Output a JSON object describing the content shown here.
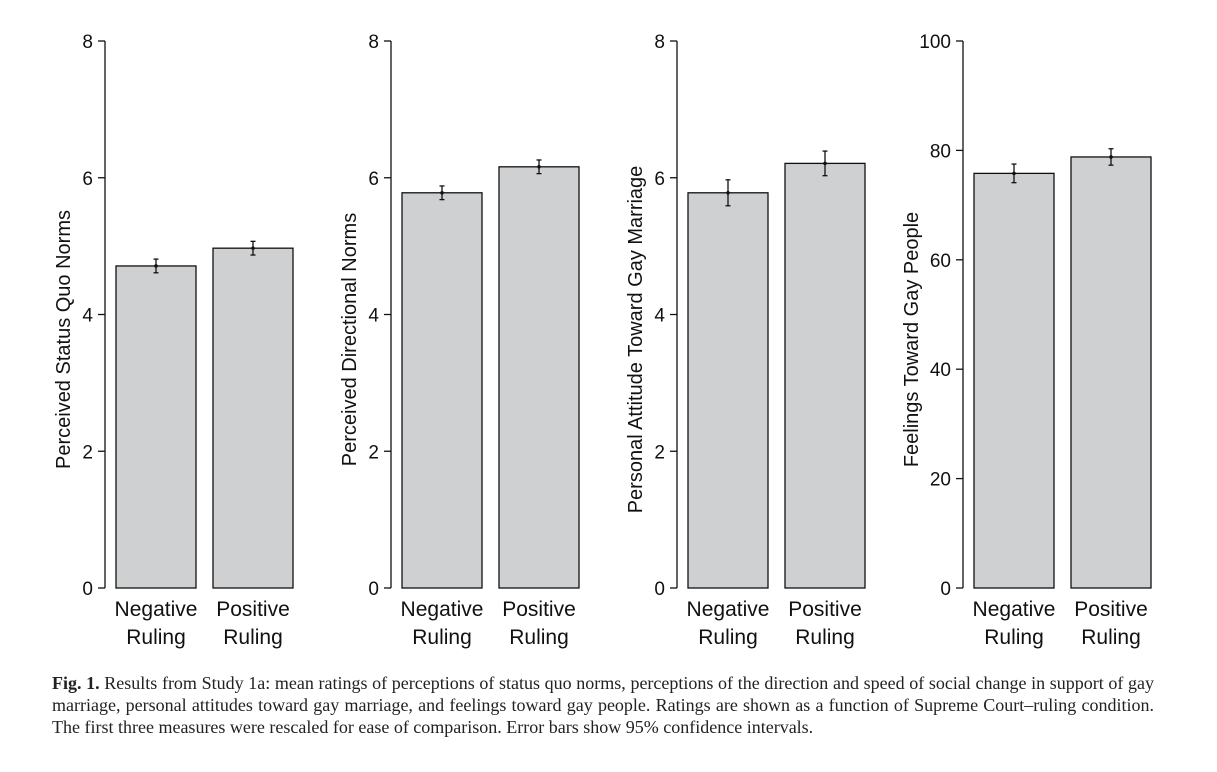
{
  "chart_data": [
    {
      "type": "bar",
      "categories": [
        "Negative Ruling",
        "Positive Ruling"
      ],
      "values": [
        4.71,
        4.97
      ],
      "error_bars": [
        [
          4.61,
          4.81
        ],
        [
          4.87,
          5.07
        ]
      ],
      "ylabel": "Perceived Status Quo Norms",
      "ylim": [
        0,
        8
      ],
      "yticks": [
        0,
        2,
        4,
        6,
        8
      ]
    },
    {
      "type": "bar",
      "categories": [
        "Negative Ruling",
        "Positive Ruling"
      ],
      "values": [
        5.78,
        6.16
      ],
      "error_bars": [
        [
          5.68,
          5.88
        ],
        [
          6.06,
          6.26
        ]
      ],
      "ylabel": "Perceived Directional Norms",
      "ylim": [
        0,
        8
      ],
      "yticks": [
        0,
        2,
        4,
        6,
        8
      ]
    },
    {
      "type": "bar",
      "categories": [
        "Negative Ruling",
        "Positive Ruling"
      ],
      "values": [
        5.78,
        6.21
      ],
      "error_bars": [
        [
          5.59,
          5.97
        ],
        [
          6.03,
          6.39
        ]
      ],
      "ylabel": "Personal Attitude Toward Gay Marriage",
      "ylim": [
        0,
        8
      ],
      "yticks": [
        0,
        2,
        4,
        6,
        8
      ]
    },
    {
      "type": "bar",
      "categories": [
        "Negative Ruling",
        "Positive Ruling"
      ],
      "values": [
        75.8,
        78.8
      ],
      "error_bars": [
        [
          74.1,
          77.5
        ],
        [
          77.3,
          80.3
        ]
      ],
      "ylabel": "Feelings Toward Gay People",
      "ylim": [
        0,
        100
      ],
      "yticks": [
        0,
        20,
        40,
        60,
        80,
        100
      ]
    }
  ],
  "caption": {
    "label": "Fig. 1.",
    "text": "Results from Study 1a: mean ratings of perceptions of status quo norms, perceptions of the direction and speed of social change in support of gay marriage, personal attitudes toward gay marriage, and feelings toward gay people. Ratings are shown as a function of Supreme Court–ruling condition. The first three measures were rescaled for ease of comparison. Error bars show 95% confidence intervals."
  },
  "colors": {
    "bar_fill": "#cfd0d2",
    "bar_stroke": "#111111",
    "axis": "#111111"
  }
}
